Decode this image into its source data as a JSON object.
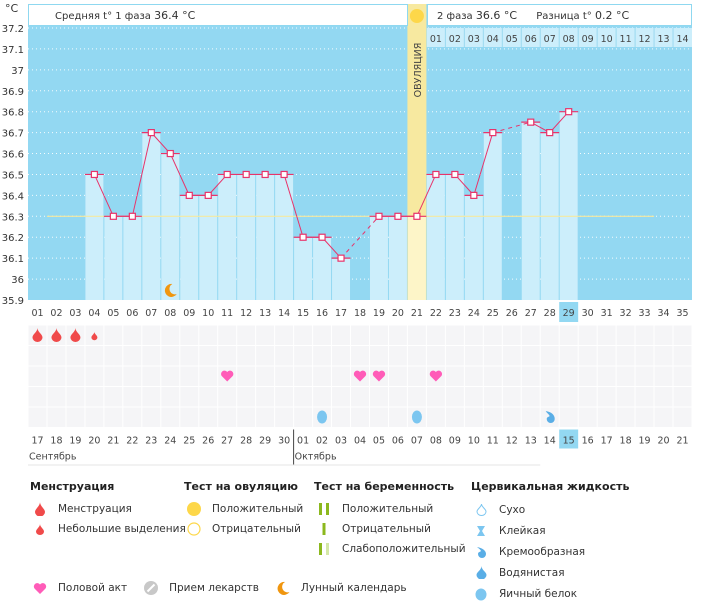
{
  "header": {
    "unit": "°C",
    "phase1_label": "Средняя t° 1 фаза",
    "phase1_value": "36.4 °C",
    "phase2_label": "2 фаза",
    "phase2_value": "36.6 °C",
    "diff_label": "Разница t°",
    "diff_value": "0.2 °C",
    "ovulation_label": "ОВУЛЯЦИЯ"
  },
  "colors": {
    "background": "#93d8f2",
    "bar": "#cceefb",
    "line": "#e8336a",
    "coverline": "#f5e9a0",
    "ovulation": "#f7e9a0",
    "highlight": "#93d8f2",
    "weekend": "#e8336a",
    "menstruation": "#f04a4a",
    "intercourse": "#ff5cb8",
    "fluid": "#7cc6f0",
    "moon": "#f0960f",
    "sun": "#fdd749"
  },
  "chart_data": {
    "type": "line",
    "title": "",
    "ylabel": "°C",
    "xlabel": "",
    "ylim": [
      35.9,
      37.2
    ],
    "yticks": [
      "35.9",
      "36",
      "36.1",
      "36.2",
      "36.3",
      "36.4",
      "36.5",
      "36.6",
      "36.7",
      "36.8",
      "36.9",
      "37",
      "37.1",
      "37.2"
    ],
    "coverline": 36.3,
    "cycle_days": [
      "01",
      "02",
      "03",
      "04",
      "05",
      "06",
      "07",
      "08",
      "09",
      "10",
      "11",
      "12",
      "13",
      "14",
      "15",
      "16",
      "17",
      "18",
      "19",
      "20",
      "21",
      "22",
      "23",
      "24",
      "25",
      "26",
      "27",
      "28",
      "29",
      "30",
      "31",
      "32",
      "33",
      "34",
      "35"
    ],
    "dates": [
      "17",
      "18",
      "19",
      "20",
      "21",
      "22",
      "23",
      "24",
      "25",
      "26",
      "27",
      "28",
      "29",
      "30",
      "01",
      "02",
      "03",
      "04",
      "05",
      "06",
      "07",
      "08",
      "09",
      "10",
      "11",
      "12",
      "13",
      "14",
      "15",
      "16",
      "17",
      "18",
      "19",
      "20",
      "21"
    ],
    "weekend_dates_idx": [
      3,
      4,
      10,
      11,
      17,
      18,
      24,
      25,
      31,
      32
    ],
    "months": [
      {
        "label": "Сентябрь",
        "start_idx": 0
      },
      {
        "label": "Октябрь",
        "start_idx": 14
      }
    ],
    "highlight_day_idx": 28,
    "ovulation_day_idx": 20,
    "post_ovulation_days": [
      "01",
      "02",
      "03",
      "04",
      "05",
      "06",
      "07",
      "08",
      "09",
      "10",
      "11",
      "12",
      "13",
      "14"
    ],
    "series": [
      {
        "name": "Базальная температура",
        "values": [
          null,
          null,
          null,
          36.5,
          36.3,
          36.3,
          36.7,
          36.6,
          36.4,
          36.4,
          36.5,
          36.5,
          36.5,
          36.5,
          36.2,
          36.2,
          36.1,
          null,
          36.3,
          36.3,
          36.3,
          36.5,
          36.5,
          36.4,
          36.7,
          null,
          36.75,
          36.7,
          36.8,
          null,
          null,
          null,
          null,
          null,
          null
        ]
      }
    ],
    "dashed_gaps": [
      [
        16,
        18
      ],
      [
        24,
        26
      ]
    ],
    "moon_day_idx": 7,
    "events": {
      "menstruation": [
        {
          "idx": 0,
          "size": "big"
        },
        {
          "idx": 1,
          "size": "big"
        },
        {
          "idx": 2,
          "size": "big"
        },
        {
          "idx": 3,
          "size": "small"
        }
      ],
      "intercourse": [
        10,
        17,
        18,
        21
      ],
      "fluid": [
        {
          "idx": 15,
          "type": "egg-white"
        },
        {
          "idx": 20,
          "type": "watery"
        },
        {
          "idx": 27,
          "type": "creamy"
        }
      ]
    }
  },
  "legend": {
    "menstruation": {
      "title": "Менструация",
      "items": [
        "Менструация",
        "Небольшие выделения"
      ]
    },
    "ovulation_test": {
      "title": "Тест на овуляцию",
      "items": [
        "Положительный",
        "Отрицательный"
      ]
    },
    "pregnancy_test": {
      "title": "Тест на беременность",
      "items": [
        "Положительный",
        "Отрицательный",
        "Слабоположительный"
      ]
    },
    "cervical_fluid": {
      "title": "Цервикальная жидкость",
      "items": [
        "Сухо",
        "Клейкая",
        "Кремообразная",
        "Водянистая",
        "Яичный белок"
      ]
    },
    "other": [
      "Половой акт",
      "Прием лекарств",
      "Лунный календарь"
    ]
  }
}
